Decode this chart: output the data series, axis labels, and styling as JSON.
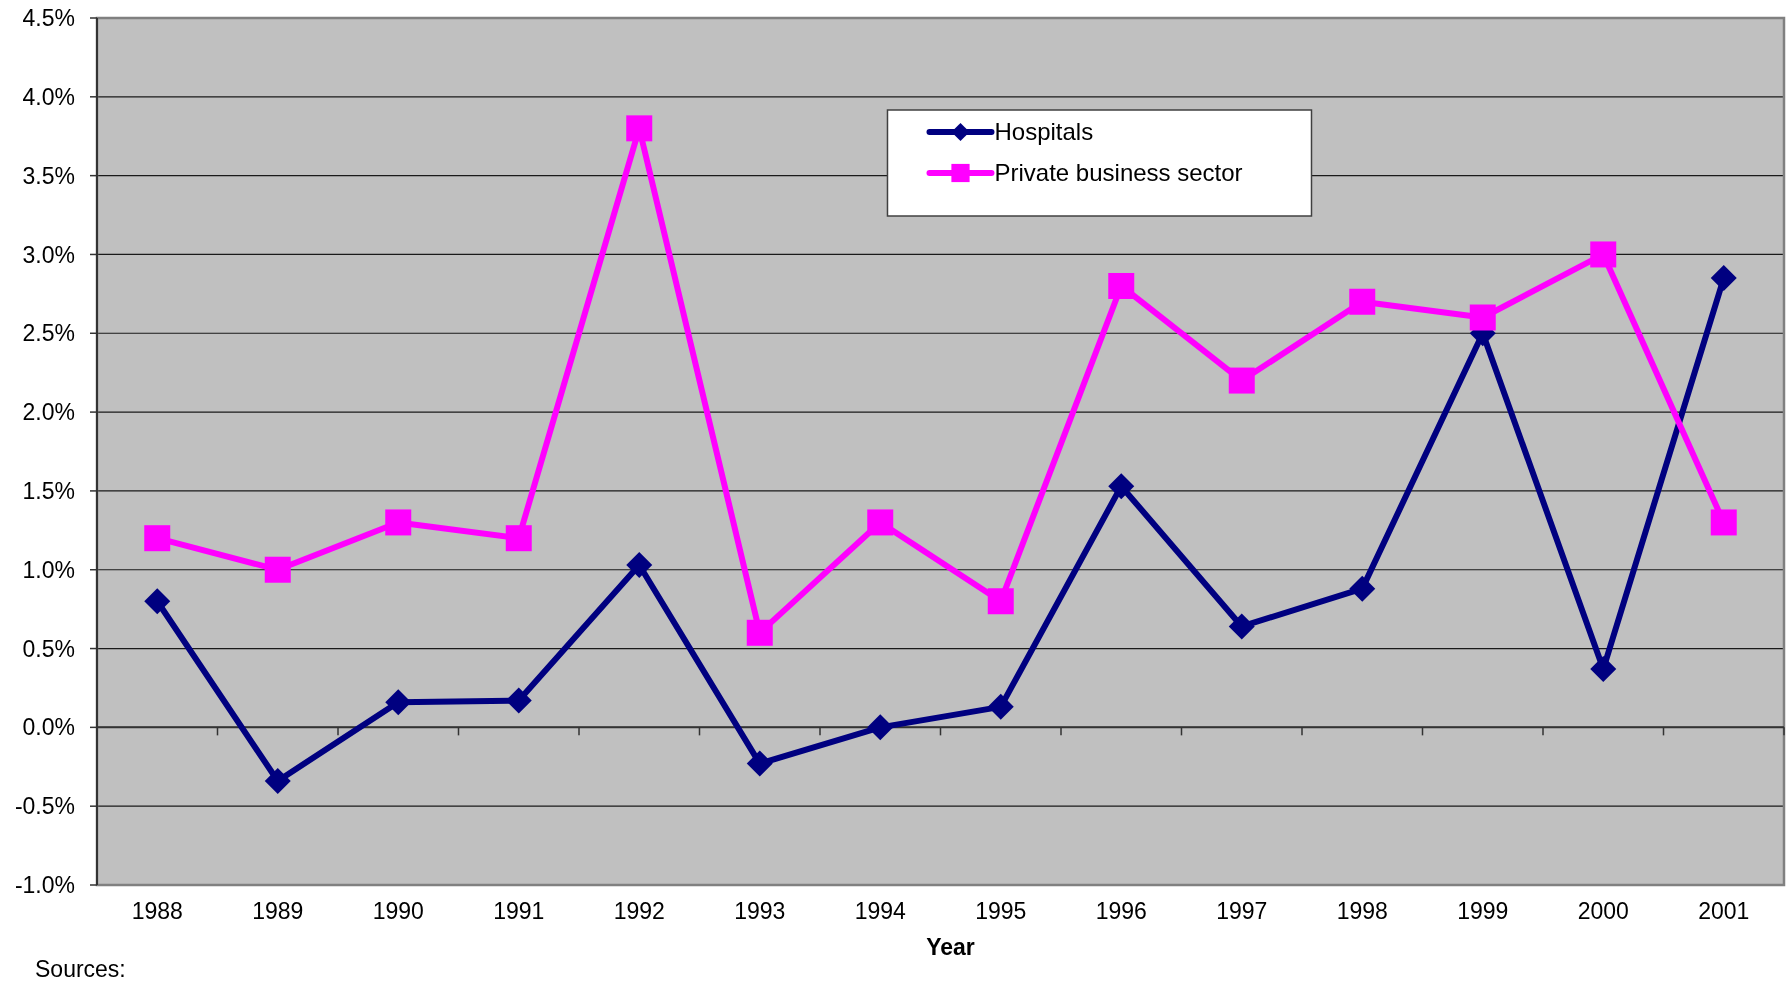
{
  "chart_data": {
    "type": "line",
    "xlabel": "Year",
    "annotations": [
      "Sources:"
    ],
    "categories": [
      "1988",
      "1989",
      "1990",
      "1991",
      "1992",
      "1993",
      "1994",
      "1995",
      "1996",
      "1997",
      "1998",
      "1999",
      "2000",
      "2001"
    ],
    "series": [
      {
        "name": "Hospitals",
        "color": "#000080",
        "marker": "diamond",
        "values": [
          0.8,
          -0.34,
          0.16,
          0.17,
          1.03,
          -0.23,
          0.0,
          0.13,
          1.53,
          0.64,
          0.88,
          2.5,
          0.37,
          2.85
        ]
      },
      {
        "name": "Private business sector",
        "color": "#ff00ff",
        "marker": "square",
        "values": [
          1.2,
          1.0,
          1.3,
          1.2,
          3.8,
          0.6,
          1.3,
          0.8,
          2.8,
          2.2,
          2.7,
          2.6,
          3.0,
          1.3
        ]
      }
    ],
    "ylim": [
      -1,
      4.5
    ],
    "yticks": [
      {
        "value": -1,
        "label": "-1.0%"
      },
      {
        "value": -0.5,
        "label": "-0.5%"
      },
      {
        "value": 0,
        "label": "0.0%"
      },
      {
        "value": 0.5,
        "label": "0.5%"
      },
      {
        "value": 1,
        "label": "1.0%"
      },
      {
        "value": 1.5,
        "label": "1.5%"
      },
      {
        "value": 2,
        "label": "2.0%"
      },
      {
        "value": 2.5,
        "label": "2.5%"
      },
      {
        "value": 3,
        "label": "3.0%"
      },
      {
        "value": 3.5,
        "label": "3.5%"
      },
      {
        "value": 4,
        "label": "4.0%"
      },
      {
        "value": 4.5,
        "label": "4.5%"
      }
    ],
    "grid": "y",
    "legend": "top",
    "line_style": "solid"
  }
}
